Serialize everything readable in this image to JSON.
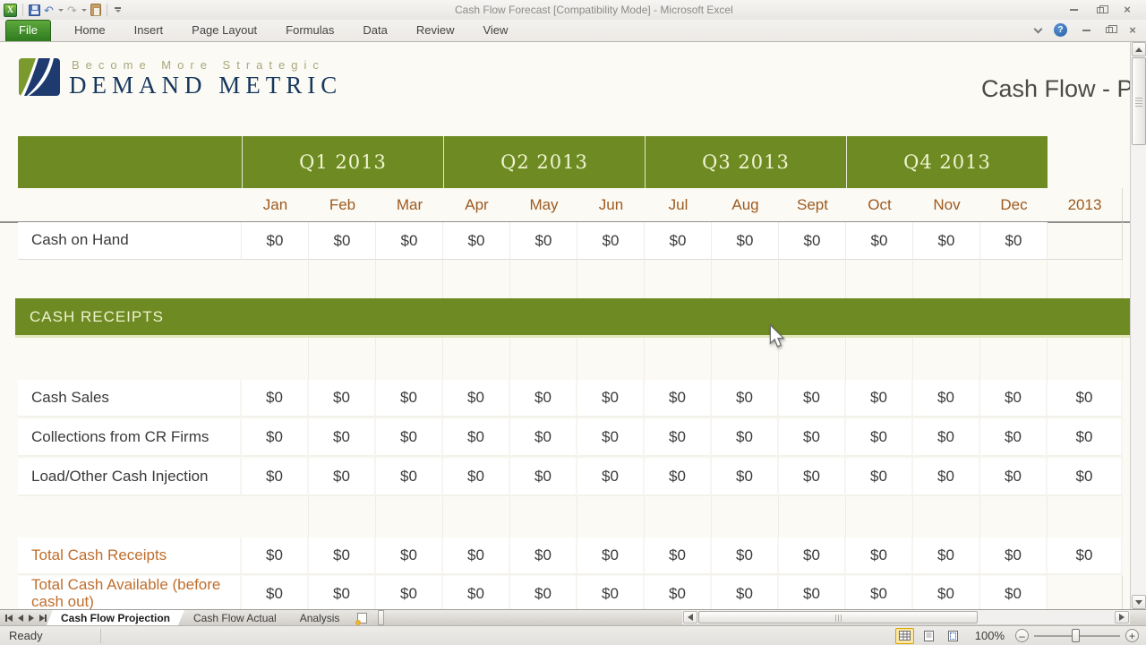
{
  "window": {
    "title": "Cash Flow Forecast  [Compatibility Mode]  -  Microsoft Excel"
  },
  "ribbon": {
    "tabs": [
      "File",
      "Home",
      "Insert",
      "Page Layout",
      "Formulas",
      "Data",
      "Review",
      "View"
    ],
    "active_tab": "File"
  },
  "brand": {
    "tagline": "Become More Strategic",
    "name": "DEMAND METRIC"
  },
  "sheet": {
    "title": "Cash Flow - P"
  },
  "table": {
    "quarters": [
      "Q1 2013",
      "Q2 2013",
      "Q3 2013",
      "Q4 2013"
    ],
    "months": [
      "Jan",
      "Feb",
      "Mar",
      "Apr",
      "May",
      "Jun",
      "Jul",
      "Aug",
      "Sept",
      "Oct",
      "Nov",
      "Dec"
    ],
    "annual_label": "2013",
    "section_header": "CASH RECEIPTS",
    "rows": [
      {
        "label": "Cash on Hand",
        "type": "plain",
        "monthly": [
          "$0",
          "$0",
          "$0",
          "$0",
          "$0",
          "$0",
          "$0",
          "$0",
          "$0",
          "$0",
          "$0",
          "$0"
        ],
        "annual": ""
      },
      {
        "label": "Cash Sales",
        "type": "detail",
        "monthly": [
          "$0",
          "$0",
          "$0",
          "$0",
          "$0",
          "$0",
          "$0",
          "$0",
          "$0",
          "$0",
          "$0",
          "$0"
        ],
        "annual": "$0"
      },
      {
        "label": "Collections from CR Firms",
        "type": "detail",
        "monthly": [
          "$0",
          "$0",
          "$0",
          "$0",
          "$0",
          "$0",
          "$0",
          "$0",
          "$0",
          "$0",
          "$0",
          "$0"
        ],
        "annual": "$0"
      },
      {
        "label": "Load/Other Cash Injection",
        "type": "detail",
        "monthly": [
          "$0",
          "$0",
          "$0",
          "$0",
          "$0",
          "$0",
          "$0",
          "$0",
          "$0",
          "$0",
          "$0",
          "$0"
        ],
        "annual": "$0"
      },
      {
        "label": "Total Cash Receipts",
        "type": "total",
        "monthly": [
          "$0",
          "$0",
          "$0",
          "$0",
          "$0",
          "$0",
          "$0",
          "$0",
          "$0",
          "$0",
          "$0",
          "$0"
        ],
        "annual": "$0"
      },
      {
        "label": "Total Cash Available (before cash out)",
        "type": "total",
        "monthly": [
          "$0",
          "$0",
          "$0",
          "$0",
          "$0",
          "$0",
          "$0",
          "$0",
          "$0",
          "$0",
          "$0",
          "$0"
        ],
        "annual": ""
      }
    ]
  },
  "sheet_tabs": {
    "items": [
      {
        "label": "Cash Flow Projection",
        "active": true
      },
      {
        "label": "Cash Flow Actual",
        "active": false
      },
      {
        "label": "Analysis",
        "active": false
      }
    ]
  },
  "status": {
    "mode": "Ready",
    "zoom_level": "100%"
  },
  "icons": {
    "qat": [
      "excel-icon",
      "save-icon",
      "undo-icon",
      "redo-icon",
      "paste-icon",
      "customize-qat-icon"
    ],
    "window": [
      "minimize-icon",
      "restore-icon",
      "close-icon"
    ],
    "ribbon_right": [
      "collapse-ribbon-icon",
      "help-icon"
    ],
    "view_buttons": [
      "normal-view-icon",
      "page-layout-view-icon",
      "page-break-view-icon"
    ]
  },
  "colors": {
    "header_green": "#6e8b23",
    "month_text": "#9d5a21",
    "total_text": "#bf6e2d",
    "brand_navy": "#17375e",
    "tagline_olive": "#a8a87e",
    "file_tab_green": "#3f8a28"
  }
}
